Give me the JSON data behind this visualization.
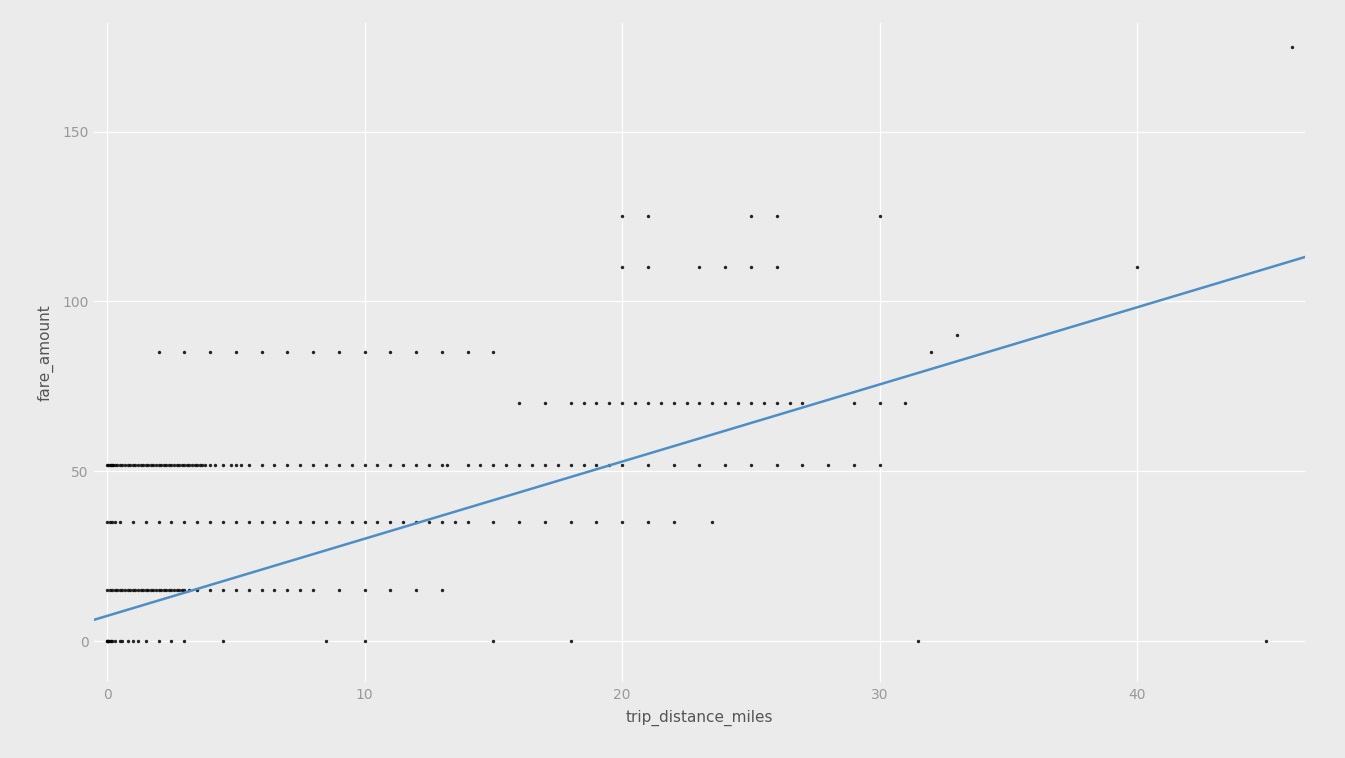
{
  "xlabel": "trip_distance_miles",
  "ylabel": "fare_amount",
  "background_color": "#ebebeb",
  "grid_color": "#ffffff",
  "scatter_color": "#000000",
  "line_color": "#4d8ec4",
  "xlim": [
    -0.5,
    46.5
  ],
  "ylim": [
    -12,
    182
  ],
  "xticks": [
    0,
    10,
    20,
    30,
    40
  ],
  "yticks": [
    0,
    50,
    100,
    150
  ],
  "scatter_alpha": 0.85,
  "scatter_size": 6,
  "line_x0": -0.5,
  "line_x1": 46.5,
  "line_slope": 2.27,
  "line_intercept": 7.5,
  "points": [
    [
      0.0,
      0.0
    ],
    [
      0.01,
      0.0
    ],
    [
      0.02,
      0.0
    ],
    [
      0.05,
      0.0
    ],
    [
      0.1,
      0.0
    ],
    [
      0.15,
      0.0
    ],
    [
      0.2,
      0.0
    ],
    [
      0.3,
      0.0
    ],
    [
      0.5,
      0.0
    ],
    [
      0.6,
      0.0
    ],
    [
      0.8,
      0.0
    ],
    [
      1.0,
      0.0
    ],
    [
      1.2,
      0.0
    ],
    [
      1.5,
      0.0
    ],
    [
      2.0,
      0.0
    ],
    [
      2.5,
      0.0
    ],
    [
      3.0,
      0.0
    ],
    [
      4.5,
      0.0
    ],
    [
      8.5,
      0.0
    ],
    [
      10.0,
      0.0
    ],
    [
      15.0,
      0.0
    ],
    [
      18.0,
      0.0
    ],
    [
      31.5,
      0.0
    ],
    [
      45.0,
      0.0
    ],
    [
      0.0,
      15.0
    ],
    [
      0.1,
      15.0
    ],
    [
      0.2,
      15.0
    ],
    [
      0.3,
      15.0
    ],
    [
      0.4,
      15.0
    ],
    [
      0.5,
      15.0
    ],
    [
      0.6,
      15.0
    ],
    [
      0.7,
      15.0
    ],
    [
      0.8,
      15.0
    ],
    [
      0.9,
      15.0
    ],
    [
      1.0,
      15.0
    ],
    [
      1.1,
      15.0
    ],
    [
      1.2,
      15.0
    ],
    [
      1.3,
      15.0
    ],
    [
      1.4,
      15.0
    ],
    [
      1.5,
      15.0
    ],
    [
      1.6,
      15.0
    ],
    [
      1.7,
      15.0
    ],
    [
      1.8,
      15.0
    ],
    [
      1.9,
      15.0
    ],
    [
      2.0,
      15.0
    ],
    [
      2.1,
      15.0
    ],
    [
      2.2,
      15.0
    ],
    [
      2.3,
      15.0
    ],
    [
      2.4,
      15.0
    ],
    [
      2.5,
      15.0
    ],
    [
      2.6,
      15.0
    ],
    [
      2.7,
      15.0
    ],
    [
      2.8,
      15.0
    ],
    [
      2.9,
      15.0
    ],
    [
      3.0,
      15.0
    ],
    [
      3.2,
      15.0
    ],
    [
      3.5,
      15.0
    ],
    [
      4.0,
      15.0
    ],
    [
      4.5,
      15.0
    ],
    [
      5.0,
      15.0
    ],
    [
      5.5,
      15.0
    ],
    [
      6.0,
      15.0
    ],
    [
      6.5,
      15.0
    ],
    [
      7.0,
      15.0
    ],
    [
      7.5,
      15.0
    ],
    [
      8.0,
      15.0
    ],
    [
      9.0,
      15.0
    ],
    [
      10.0,
      15.0
    ],
    [
      11.0,
      15.0
    ],
    [
      12.0,
      15.0
    ],
    [
      13.0,
      15.0
    ],
    [
      0.0,
      35.0
    ],
    [
      0.1,
      35.0
    ],
    [
      0.2,
      35.0
    ],
    [
      0.3,
      35.0
    ],
    [
      0.5,
      35.0
    ],
    [
      1.0,
      35.0
    ],
    [
      1.5,
      35.0
    ],
    [
      2.0,
      35.0
    ],
    [
      2.5,
      35.0
    ],
    [
      3.0,
      35.0
    ],
    [
      3.5,
      35.0
    ],
    [
      4.0,
      35.0
    ],
    [
      4.5,
      35.0
    ],
    [
      5.0,
      35.0
    ],
    [
      5.5,
      35.0
    ],
    [
      6.0,
      35.0
    ],
    [
      6.5,
      35.0
    ],
    [
      7.0,
      35.0
    ],
    [
      7.5,
      35.0
    ],
    [
      8.0,
      35.0
    ],
    [
      8.5,
      35.0
    ],
    [
      9.0,
      35.0
    ],
    [
      9.5,
      35.0
    ],
    [
      10.0,
      35.0
    ],
    [
      10.5,
      35.0
    ],
    [
      11.0,
      35.0
    ],
    [
      11.5,
      35.0
    ],
    [
      12.0,
      35.0
    ],
    [
      12.5,
      35.0
    ],
    [
      13.0,
      35.0
    ],
    [
      13.5,
      35.0
    ],
    [
      14.0,
      35.0
    ],
    [
      15.0,
      35.0
    ],
    [
      16.0,
      35.0
    ],
    [
      17.0,
      35.0
    ],
    [
      18.0,
      35.0
    ],
    [
      19.0,
      35.0
    ],
    [
      20.0,
      35.0
    ],
    [
      21.0,
      35.0
    ],
    [
      22.0,
      35.0
    ],
    [
      23.5,
      35.0
    ],
    [
      0.0,
      52.0
    ],
    [
      0.05,
      52.0
    ],
    [
      0.1,
      52.0
    ],
    [
      0.15,
      52.0
    ],
    [
      0.2,
      52.0
    ],
    [
      0.25,
      52.0
    ],
    [
      0.3,
      52.0
    ],
    [
      0.4,
      52.0
    ],
    [
      0.5,
      52.0
    ],
    [
      0.6,
      52.0
    ],
    [
      0.7,
      52.0
    ],
    [
      0.8,
      52.0
    ],
    [
      0.9,
      52.0
    ],
    [
      1.0,
      52.0
    ],
    [
      1.1,
      52.0
    ],
    [
      1.2,
      52.0
    ],
    [
      1.3,
      52.0
    ],
    [
      1.4,
      52.0
    ],
    [
      1.5,
      52.0
    ],
    [
      1.6,
      52.0
    ],
    [
      1.7,
      52.0
    ],
    [
      1.8,
      52.0
    ],
    [
      1.9,
      52.0
    ],
    [
      2.0,
      52.0
    ],
    [
      2.1,
      52.0
    ],
    [
      2.2,
      52.0
    ],
    [
      2.3,
      52.0
    ],
    [
      2.4,
      52.0
    ],
    [
      2.5,
      52.0
    ],
    [
      2.6,
      52.0
    ],
    [
      2.7,
      52.0
    ],
    [
      2.8,
      52.0
    ],
    [
      2.9,
      52.0
    ],
    [
      3.0,
      52.0
    ],
    [
      3.1,
      52.0
    ],
    [
      3.2,
      52.0
    ],
    [
      3.3,
      52.0
    ],
    [
      3.4,
      52.0
    ],
    [
      3.5,
      52.0
    ],
    [
      3.6,
      52.0
    ],
    [
      3.7,
      52.0
    ],
    [
      3.8,
      52.0
    ],
    [
      4.0,
      52.0
    ],
    [
      4.2,
      52.0
    ],
    [
      4.5,
      52.0
    ],
    [
      4.8,
      52.0
    ],
    [
      5.0,
      52.0
    ],
    [
      5.2,
      52.0
    ],
    [
      5.5,
      52.0
    ],
    [
      6.0,
      52.0
    ],
    [
      6.5,
      52.0
    ],
    [
      7.0,
      52.0
    ],
    [
      7.5,
      52.0
    ],
    [
      8.0,
      52.0
    ],
    [
      8.5,
      52.0
    ],
    [
      9.0,
      52.0
    ],
    [
      9.5,
      52.0
    ],
    [
      10.0,
      52.0
    ],
    [
      10.5,
      52.0
    ],
    [
      11.0,
      52.0
    ],
    [
      11.5,
      52.0
    ],
    [
      12.0,
      52.0
    ],
    [
      12.5,
      52.0
    ],
    [
      13.0,
      52.0
    ],
    [
      13.2,
      52.0
    ],
    [
      14.0,
      52.0
    ],
    [
      14.5,
      52.0
    ],
    [
      15.0,
      52.0
    ],
    [
      15.5,
      52.0
    ],
    [
      16.0,
      52.0
    ],
    [
      16.5,
      52.0
    ],
    [
      17.0,
      52.0
    ],
    [
      17.5,
      52.0
    ],
    [
      18.0,
      52.0
    ],
    [
      18.5,
      52.0
    ],
    [
      19.0,
      52.0
    ],
    [
      19.5,
      52.0
    ],
    [
      20.0,
      52.0
    ],
    [
      21.0,
      52.0
    ],
    [
      22.0,
      52.0
    ],
    [
      23.0,
      52.0
    ],
    [
      24.0,
      52.0
    ],
    [
      25.0,
      52.0
    ],
    [
      26.0,
      52.0
    ],
    [
      27.0,
      52.0
    ],
    [
      28.0,
      52.0
    ],
    [
      29.0,
      52.0
    ],
    [
      30.0,
      52.0
    ],
    [
      16.0,
      70.0
    ],
    [
      17.0,
      70.0
    ],
    [
      18.0,
      70.0
    ],
    [
      18.5,
      70.0
    ],
    [
      19.0,
      70.0
    ],
    [
      19.5,
      70.0
    ],
    [
      20.0,
      70.0
    ],
    [
      20.5,
      70.0
    ],
    [
      21.0,
      70.0
    ],
    [
      21.5,
      70.0
    ],
    [
      22.0,
      70.0
    ],
    [
      22.5,
      70.0
    ],
    [
      23.0,
      70.0
    ],
    [
      23.5,
      70.0
    ],
    [
      24.0,
      70.0
    ],
    [
      24.5,
      70.0
    ],
    [
      25.0,
      70.0
    ],
    [
      25.5,
      70.0
    ],
    [
      26.0,
      70.0
    ],
    [
      26.5,
      70.0
    ],
    [
      27.0,
      70.0
    ],
    [
      29.0,
      70.0
    ],
    [
      30.0,
      70.0
    ],
    [
      31.0,
      70.0
    ],
    [
      2.0,
      85.0
    ],
    [
      3.0,
      85.0
    ],
    [
      4.0,
      85.0
    ],
    [
      5.0,
      85.0
    ],
    [
      6.0,
      85.0
    ],
    [
      7.0,
      85.0
    ],
    [
      8.0,
      85.0
    ],
    [
      9.0,
      85.0
    ],
    [
      10.0,
      85.0
    ],
    [
      11.0,
      85.0
    ],
    [
      12.0,
      85.0
    ],
    [
      13.0,
      85.0
    ],
    [
      14.0,
      85.0
    ],
    [
      15.0,
      85.0
    ],
    [
      32.0,
      85.0
    ],
    [
      20.0,
      110.0
    ],
    [
      21.0,
      110.0
    ],
    [
      23.0,
      110.0
    ],
    [
      24.0,
      110.0
    ],
    [
      25.0,
      110.0
    ],
    [
      26.0,
      110.0
    ],
    [
      40.0,
      110.0
    ],
    [
      20.0,
      125.0
    ],
    [
      21.0,
      125.0
    ],
    [
      25.0,
      125.0
    ],
    [
      26.0,
      125.0
    ],
    [
      30.0,
      125.0
    ],
    [
      46.0,
      175.0
    ],
    [
      33.0,
      90.0
    ]
  ]
}
